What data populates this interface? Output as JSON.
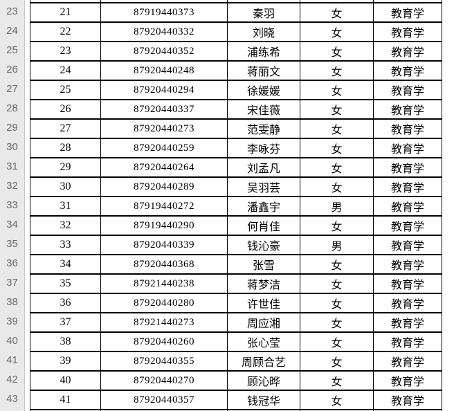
{
  "sheet": {
    "colors": {
      "grid_border": "#000000",
      "cell_bg": "#ffffff",
      "cell_text": "#000000",
      "row_header_bg": "#e9e9e9",
      "row_header_text": "#6a6a6a",
      "row_header_divider": "#c9c9c9"
    },
    "row_headers": [
      "23",
      "24",
      "25",
      "26",
      "27",
      "28",
      "29",
      "30",
      "31",
      "32",
      "33",
      "34",
      "35",
      "36",
      "37",
      "38",
      "39",
      "40",
      "41",
      "42",
      "43"
    ],
    "rows": [
      {
        "seq": "21",
        "exam_no": "87919440373",
        "name": "秦羽",
        "gender": "女",
        "major": "教育学"
      },
      {
        "seq": "22",
        "exam_no": "87920440332",
        "name": "刘晓",
        "gender": "女",
        "major": "教育学"
      },
      {
        "seq": "23",
        "exam_no": "87920440352",
        "name": "浦练希",
        "gender": "女",
        "major": "教育学"
      },
      {
        "seq": "24",
        "exam_no": "87920440248",
        "name": "蒋丽文",
        "gender": "女",
        "major": "教育学"
      },
      {
        "seq": "25",
        "exam_no": "87920440294",
        "name": "徐媛媛",
        "gender": "女",
        "major": "教育学"
      },
      {
        "seq": "26",
        "exam_no": "87920440337",
        "name": "宋佳薇",
        "gender": "女",
        "major": "教育学"
      },
      {
        "seq": "27",
        "exam_no": "87920440273",
        "name": "范雯静",
        "gender": "女",
        "major": "教育学"
      },
      {
        "seq": "28",
        "exam_no": "87920440259",
        "name": "李咏芬",
        "gender": "女",
        "major": "教育学"
      },
      {
        "seq": "29",
        "exam_no": "87920440264",
        "name": "刘孟凡",
        "gender": "女",
        "major": "教育学"
      },
      {
        "seq": "30",
        "exam_no": "87920440289",
        "name": "吴羽芸",
        "gender": "女",
        "major": "教育学"
      },
      {
        "seq": "31",
        "exam_no": "87919440272",
        "name": "潘鑫宇",
        "gender": "男",
        "major": "教育学"
      },
      {
        "seq": "32",
        "exam_no": "87919440290",
        "name": "何肖佳",
        "gender": "女",
        "major": "教育学"
      },
      {
        "seq": "33",
        "exam_no": "87920440339",
        "name": "钱沁豪",
        "gender": "男",
        "major": "教育学"
      },
      {
        "seq": "34",
        "exam_no": "87920440368",
        "name": "张雪",
        "gender": "女",
        "major": "教育学"
      },
      {
        "seq": "35",
        "exam_no": "87921440238",
        "name": "蒋梦洁",
        "gender": "女",
        "major": "教育学"
      },
      {
        "seq": "36",
        "exam_no": "87920440280",
        "name": "许世佳",
        "gender": "女",
        "major": "教育学"
      },
      {
        "seq": "37",
        "exam_no": "87921440273",
        "name": "周应湘",
        "gender": "女",
        "major": "教育学"
      },
      {
        "seq": "38",
        "exam_no": "87920440260",
        "name": "张心莹",
        "gender": "女",
        "major": "教育学"
      },
      {
        "seq": "39",
        "exam_no": "87920440355",
        "name": "周顾合艺",
        "gender": "女",
        "major": "教育学"
      },
      {
        "seq": "40",
        "exam_no": "87920440270",
        "name": "顾沁晔",
        "gender": "女",
        "major": "教育学"
      },
      {
        "seq": "41",
        "exam_no": "87920440357",
        "name": "钱冠华",
        "gender": "女",
        "major": "教育学"
      }
    ]
  }
}
